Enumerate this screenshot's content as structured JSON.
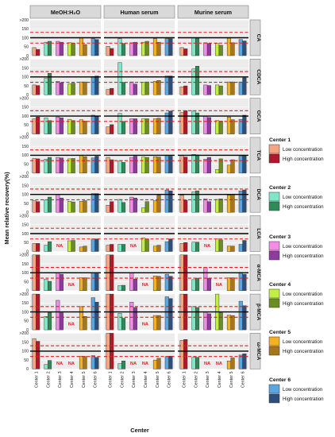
{
  "chart_data": {
    "type": "bar",
    "facet_columns": [
      "MeOH:H₂O",
      "Human serum",
      "Murine serum"
    ],
    "facet_rows": [
      "CA",
      "CDCA",
      "GCA",
      "TCA",
      "DCA",
      "LCA",
      "α-MCA",
      "β-MCA",
      "ω-MCA"
    ],
    "categories": [
      "Center 1",
      "Center 2",
      "Center 3",
      "Center 4",
      "Center 5",
      "Center 6"
    ],
    "xlabel": "Center",
    "ylabel": "Mean relative recovery(%)",
    "yticks": [
      "0",
      "50",
      "100",
      "150",
      ">200"
    ],
    "ylim": [
      0,
      200
    ],
    "reference_lines": {
      "solid": 100,
      "dashed": [
        70,
        130
      ]
    },
    "legend": [
      {
        "title": "Center 1",
        "low_label": "Low concentration",
        "high_label": "High concentration",
        "low_color": "#f4a582",
        "high_color": "#b2182b"
      },
      {
        "title": "Center 2",
        "low_label": "Low concentration",
        "high_label": "High concentration",
        "low_color": "#7ee8c6",
        "high_color": "#2e8b57"
      },
      {
        "title": "Center 3",
        "low_label": "Low concentration",
        "high_label": "High concentration",
        "low_color": "#f28ce8",
        "high_color": "#8e3a9e"
      },
      {
        "title": "Center 4",
        "low_label": "Low concentration",
        "high_label": "High concentration",
        "low_color": "#c2f040",
        "high_color": "#6b8e23"
      },
      {
        "title": "Center 5",
        "low_label": "Low concentration",
        "high_label": "High concentration",
        "low_color": "#f5b21f",
        "high_color": "#a6761d"
      },
      {
        "title": "Center 6",
        "low_label": "Low concentration",
        "high_label": "High concentration",
        "low_color": "#5aa6e0",
        "high_color": "#2d4f7a"
      }
    ],
    "na_label": "NA",
    "panels": [
      {
        "row": "CA",
        "col": "MeOH:H₂O",
        "values": [
          [
            45,
            35
          ],
          [
            75,
            80
          ],
          [
            80,
            75
          ],
          [
            72,
            70
          ],
          [
            100,
            62
          ],
          [
            95,
            90
          ]
        ]
      },
      {
        "row": "CA",
        "col": "Human serum",
        "values": [
          [
            52,
            40
          ],
          [
            95,
            68
          ],
          [
            72,
            75
          ],
          [
            75,
            80
          ],
          [
            95,
            75
          ],
          [
            95,
            95
          ]
        ]
      },
      {
        "row": "CA",
        "col": "Murine serum",
        "values": [
          [
            45,
            38
          ],
          [
            100,
            100
          ],
          [
            72,
            68
          ],
          [
            68,
            58
          ],
          [
            98,
            72
          ],
          [
            90,
            82
          ]
        ]
      },
      {
        "row": "CDCA",
        "col": "MeOH:H₂O",
        "values": [
          [
            55,
            52
          ],
          [
            92,
            120
          ],
          [
            75,
            68
          ],
          [
            60,
            65
          ],
          [
            72,
            72
          ],
          [
            102,
            105
          ]
        ]
      },
      {
        "row": "CDCA",
        "col": "Human serum",
        "values": [
          [
            30,
            36
          ],
          [
            180,
            70
          ],
          [
            72,
            60
          ],
          [
            70,
            72
          ],
          [
            75,
            80
          ],
          [
            105,
            105
          ]
        ]
      },
      {
        "row": "CDCA",
        "col": "Murine serum",
        "values": [
          [
            45,
            50
          ],
          [
            145,
            160
          ],
          [
            55,
            52
          ],
          [
            55,
            50
          ],
          [
            72,
            72
          ],
          [
            72,
            95
          ]
        ]
      },
      {
        "row": "GCA",
        "col": "MeOH:H₂O",
        "values": [
          [
            85,
            95
          ],
          [
            90,
            75
          ],
          [
            95,
            90
          ],
          [
            82,
            75
          ],
          [
            80,
            72
          ],
          [
            105,
            100
          ]
        ]
      },
      {
        "row": "GCA",
        "col": "Human serum",
        "values": [
          [
            40,
            52
          ],
          [
            115,
            70
          ],
          [
            85,
            85
          ],
          [
            85,
            85
          ],
          [
            85,
            88
          ],
          [
            118,
            128
          ]
        ]
      },
      {
        "row": "GCA",
        "col": "Murine serum",
        "values": [
          [
            120,
            130
          ],
          [
            130,
            118
          ],
          [
            100,
            92
          ],
          [
            75,
            72
          ],
          [
            95,
            80
          ],
          [
            82,
            105
          ]
        ]
      },
      {
        "row": "TCA",
        "col": "MeOH:H₂O",
        "values": [
          [
            82,
            80
          ],
          [
            78,
            88
          ],
          [
            88,
            85
          ],
          [
            80,
            82
          ],
          [
            100,
            92
          ],
          [
            85,
            95
          ]
        ]
      },
      {
        "row": "TCA",
        "col": "Human serum",
        "values": [
          [
            88,
            75
          ],
          [
            70,
            60
          ],
          [
            88,
            95
          ],
          [
            90,
            88
          ],
          [
            92,
            90
          ],
          [
            100,
            95
          ]
        ]
      },
      {
        "row": "TCA",
        "col": "Murine serum",
        "values": [
          [
            100,
            90
          ],
          [
            105,
            102
          ],
          [
            78,
            88
          ],
          [
            20,
            80
          ],
          [
            45,
            75
          ],
          [
            95,
            100
          ]
        ]
      },
      {
        "row": "DCA",
        "col": "MeOH:H₂O",
        "values": [
          [
            65,
            60
          ],
          [
            70,
            85
          ],
          [
            100,
            80
          ],
          [
            62,
            58
          ],
          [
            62,
            65
          ],
          [
            105,
            105
          ]
        ]
      },
      {
        "row": "DCA",
        "col": "Human serum",
        "values": [
          [
            40,
            60
          ],
          [
            72,
            55
          ],
          [
            85,
            80
          ],
          [
            25,
            60
          ],
          [
            65,
            95
          ],
          [
            125,
            120
          ]
        ]
      },
      {
        "row": "DCA",
        "col": "Murine serum",
        "values": [
          [
            95,
            68
          ],
          [
            115,
            120
          ],
          [
            75,
            60
          ],
          [
            72,
            75
          ],
          [
            95,
            100
          ],
          [
            120,
            125
          ]
        ]
      },
      {
        "row": "LCA",
        "col": "MeOH:H₂O",
        "values": [
          [
            45,
            45
          ],
          [
            35,
            55
          ],
          [
            null,
            null
          ],
          [
            60,
            62
          ],
          [
            25,
            30
          ],
          [
            70,
            70
          ]
        ]
      },
      {
        "row": "LCA",
        "col": "Human serum",
        "values": [
          [
            35,
            40
          ],
          [
            40,
            40
          ],
          [
            null,
            null
          ],
          [
            75,
            70
          ],
          [
            30,
            35
          ],
          [
            55,
            70
          ]
        ]
      },
      {
        "row": "LCA",
        "col": "Murine serum",
        "values": [
          [
            45,
            50
          ],
          [
            52,
            52
          ],
          [
            null,
            null
          ],
          [
            70,
            65
          ],
          [
            30,
            30
          ],
          [
            40,
            62
          ]
        ]
      },
      {
        "row": "α-MCA",
        "col": "MeOH:H₂O",
        "values": [
          [
            200,
            200
          ],
          [
            65,
            52
          ],
          [
            100,
            92
          ],
          [
            null,
            null
          ],
          [
            72,
            72
          ],
          [
            100,
            95
          ]
        ]
      },
      {
        "row": "α-MCA",
        "col": "Human serum",
        "values": [
          [
            200,
            200
          ],
          [
            28,
            30
          ],
          [
            100,
            65
          ],
          [
            null,
            null
          ],
          [
            82,
            80
          ],
          [
            92,
            80
          ]
        ]
      },
      {
        "row": "α-MCA",
        "col": "Murine serum",
        "values": [
          [
            200,
            200
          ],
          [
            62,
            70
          ],
          [
            130,
            70
          ],
          [
            null,
            null
          ],
          [
            72,
            72
          ],
          [
            102,
            92
          ]
        ]
      },
      {
        "row": "β-MCA",
        "col": "MeOH:H₂O",
        "values": [
          [
            200,
            200
          ],
          [
            75,
            100
          ],
          [
            165,
            95
          ],
          [
            null,
            null
          ],
          [
            130,
            75
          ],
          [
            180,
            155
          ]
        ]
      },
      {
        "row": "β-MCA",
        "col": "Human serum",
        "values": [
          [
            200,
            200
          ],
          [
            92,
            65
          ],
          [
            155,
            125
          ],
          [
            null,
            null
          ],
          [
            80,
            80
          ],
          [
            185,
            175
          ]
        ]
      },
      {
        "row": "β-MCA",
        "col": "Murine serum",
        "values": [
          [
            200,
            200
          ],
          [
            130,
            125
          ],
          [
            100,
            90
          ],
          [
            200,
            95
          ],
          [
            82,
            80
          ],
          [
            160,
            135
          ]
        ]
      },
      {
        "row": "ω-MCA",
        "col": "MeOH:H₂O",
        "values": [
          [
            170,
            155
          ],
          [
            25,
            48
          ],
          [
            null,
            null
          ],
          [
            null,
            null
          ],
          [
            72,
            70
          ],
          [
            75,
            65
          ]
        ]
      },
      {
        "row": "ω-MCA",
        "col": "Human serum",
        "values": [
          [
            200,
            200
          ],
          [
            30,
            45
          ],
          [
            null,
            null
          ],
          [
            null,
            null
          ],
          [
            50,
            60
          ],
          [
            70,
            72
          ]
        ]
      },
      {
        "row": "ω-MCA",
        "col": "Murine serum",
        "values": [
          [
            160,
            165
          ],
          [
            65,
            65
          ],
          [
            null,
            null
          ],
          [
            null,
            null
          ],
          [
            45,
            62
          ],
          [
            78,
            85
          ]
        ]
      }
    ]
  }
}
